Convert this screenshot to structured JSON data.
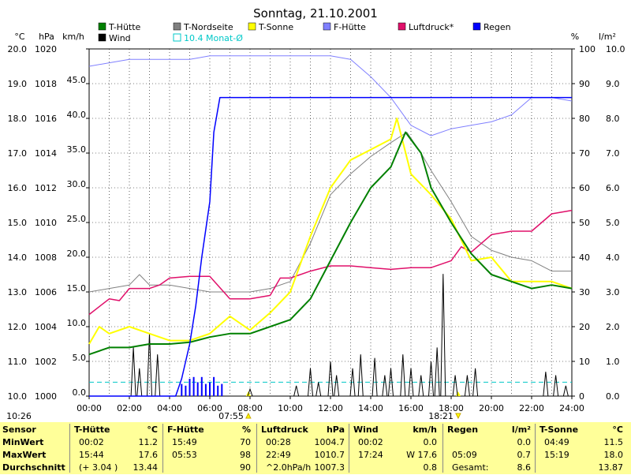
{
  "chart_data": {
    "type": "line",
    "title": "Sonntag, 21.10.2001",
    "x_range": [
      "00:00",
      "24:00"
    ],
    "x_ticks": [
      "00:00",
      "02:00",
      "04:00",
      "06:00",
      "08:00",
      "10:00",
      "12:00",
      "14:00",
      "16:00",
      "18:00",
      "20:00",
      "22:00",
      "24:00"
    ],
    "axes": {
      "celsius": {
        "unit": "°C",
        "range": [
          10.0,
          20.0
        ],
        "ticks": [
          "20.0",
          "19.0",
          "18.0",
          "17.0",
          "16.0",
          "15.0",
          "14.0",
          "13.0",
          "12.0",
          "11.0",
          "10.0"
        ]
      },
      "hpa": {
        "unit": "hPa",
        "range": [
          1000,
          1020
        ],
        "ticks": [
          "1020",
          "1018",
          "1016",
          "1014",
          "1012",
          "1010",
          "1008",
          "1006",
          "1004",
          "1002",
          "1000"
        ]
      },
      "kmh": {
        "unit": "km/h",
        "range": [
          0,
          50
        ],
        "ticks": [
          "45.0",
          "40.0",
          "35.0",
          "30.0",
          "25.0",
          "20.0",
          "15.0",
          "10.0",
          "5.0",
          "0.0"
        ]
      },
      "percent": {
        "unit": "%",
        "range": [
          0,
          100
        ],
        "ticks": [
          "100",
          "90",
          "80",
          "70",
          "60",
          "50",
          "40",
          "30",
          "20",
          "10",
          "0"
        ]
      },
      "rain": {
        "unit": "l/m²",
        "range": [
          0,
          10
        ],
        "ticks": [
          "10.0",
          "9.0",
          "8.0",
          "7.0",
          "6.0",
          "5.0",
          "4.0",
          "3.0",
          "2.0",
          "1.0",
          "0.0"
        ]
      }
    },
    "legend": [
      {
        "name": "T-Hütte",
        "color": "#008000"
      },
      {
        "name": "T-Nordseite",
        "color": "#808080"
      },
      {
        "name": "T-Sonne",
        "color": "#ffff00"
      },
      {
        "name": "F-Hütte",
        "color": "#8080ff"
      },
      {
        "name": "Luftdruck*",
        "color": "#e0106a"
      },
      {
        "name": "Regen",
        "color": "#0000ff"
      },
      {
        "name": "Wind",
        "color": "#000000"
      }
    ],
    "monthly_avg_label": "10.4 Monat-Ø",
    "monthly_avg_color": "#00c8c8",
    "monthly_avg_celsius": 10.4,
    "time_markers": {
      "start": "10:26",
      "sunrise": "07:55",
      "sunset": "18:21"
    },
    "series": [
      {
        "name": "T-Hütte",
        "axis": "celsius",
        "x": [
          0,
          1,
          2,
          3,
          4,
          5,
          6,
          7,
          8,
          9,
          10,
          11,
          12,
          13,
          14,
          15,
          15.73,
          16.5,
          17,
          18,
          19,
          20,
          21,
          22,
          23,
          24
        ],
        "values": [
          11.2,
          11.4,
          11.4,
          11.5,
          11.5,
          11.55,
          11.7,
          11.8,
          11.8,
          12.0,
          12.2,
          12.8,
          13.9,
          15.0,
          16.0,
          16.6,
          17.6,
          17.0,
          16.0,
          15.0,
          14.1,
          13.5,
          13.3,
          13.1,
          13.2,
          13.1
        ]
      },
      {
        "name": "T-Nordseite",
        "axis": "celsius",
        "x": [
          0,
          1,
          2,
          2.5,
          3,
          4,
          5,
          6,
          7,
          8,
          9,
          10,
          11,
          12,
          13,
          14,
          15,
          15.8,
          16.5,
          17,
          18,
          19,
          20,
          21,
          22,
          23,
          24
        ],
        "values": [
          13.0,
          13.1,
          13.2,
          13.5,
          13.2,
          13.2,
          13.1,
          13.0,
          13.0,
          13.0,
          13.1,
          13.3,
          14.4,
          15.8,
          16.4,
          16.9,
          17.3,
          17.6,
          17.0,
          16.5,
          15.6,
          14.6,
          14.2,
          14.0,
          13.9,
          13.6,
          13.6
        ]
      },
      {
        "name": "T-Sonne",
        "axis": "celsius",
        "x": [
          0,
          0.5,
          1,
          2,
          3,
          4,
          5,
          6,
          7,
          8,
          9,
          10,
          11,
          12,
          13,
          14,
          15,
          15.3,
          16,
          17,
          18,
          19,
          20,
          21,
          22,
          23,
          24
        ],
        "values": [
          11.5,
          12.0,
          11.8,
          12.0,
          11.8,
          11.6,
          11.6,
          11.8,
          12.3,
          11.9,
          12.4,
          13.0,
          14.6,
          16.0,
          16.8,
          17.1,
          17.4,
          18.0,
          16.4,
          15.8,
          15.1,
          13.9,
          14.0,
          13.3,
          13.3,
          13.3,
          13.1
        ]
      },
      {
        "name": "F-Hütte",
        "axis": "percent",
        "x": [
          0,
          1,
          2,
          3,
          4,
          5,
          6,
          7,
          8,
          9,
          10,
          11,
          12,
          13,
          14,
          15,
          16,
          17,
          18,
          19,
          20,
          21,
          22,
          23,
          24
        ],
        "values": [
          95,
          96,
          97,
          97,
          97,
          97,
          98,
          98,
          98,
          98,
          98,
          98,
          98,
          97,
          92,
          86,
          78,
          75,
          77,
          78,
          79,
          81,
          86,
          86,
          85
        ]
      },
      {
        "name": "Luftdruck*",
        "axis": "hpa",
        "x": [
          0,
          1,
          1.5,
          2,
          3,
          3.5,
          4,
          5,
          6,
          7,
          8,
          9,
          9.5,
          10,
          11,
          12,
          13,
          14,
          15,
          16,
          17,
          18,
          18.5,
          19,
          20,
          21,
          22,
          23,
          24
        ],
        "values": [
          1004.7,
          1005.6,
          1005.5,
          1006.2,
          1006.2,
          1006.4,
          1006.8,
          1006.9,
          1006.9,
          1005.6,
          1005.6,
          1005.8,
          1006.8,
          1006.8,
          1007.2,
          1007.5,
          1007.5,
          1007.4,
          1007.3,
          1007.4,
          1007.4,
          1007.8,
          1008.6,
          1008.3,
          1009.3,
          1009.5,
          1009.5,
          1010.5,
          1010.7
        ]
      },
      {
        "name": "Regen",
        "axis": "rain",
        "x": [
          0,
          4.3,
          4.6,
          5.0,
          5.3,
          5.6,
          6.0,
          6.2,
          6.5,
          7,
          7.3,
          8,
          24
        ],
        "values": [
          0,
          0,
          0.5,
          1.5,
          2.6,
          4.0,
          5.6,
          7.6,
          8.6,
          8.6,
          8.6,
          8.6,
          8.6
        ]
      },
      {
        "name": "Wind",
        "axis": "kmh",
        "x": [
          2.2,
          2.5,
          3.0,
          3.4,
          8.0,
          10.3,
          11.0,
          11.4,
          12.0,
          12.3,
          13.1,
          13.5,
          14.2,
          14.7,
          15.0,
          15.6,
          16.0,
          16.5,
          17.0,
          17.3,
          17.6,
          18.2,
          18.8,
          19.2,
          22.7,
          23.2,
          23.7
        ],
        "values": [
          7.0,
          4.0,
          9.0,
          6.0,
          1.0,
          1.5,
          4.0,
          2.0,
          5.0,
          3.0,
          4.0,
          6.0,
          5.5,
          3.0,
          4.0,
          6.0,
          4.0,
          3.0,
          5.0,
          7.0,
          17.6,
          3.0,
          3.0,
          4.0,
          3.5,
          3.0,
          1.5
        ]
      }
    ]
  },
  "stats": {
    "headers": {
      "sensor": "Sensor",
      "huette": [
        "T-Hütte",
        "°C"
      ],
      "fhuette": [
        "F-Hütte",
        "%"
      ],
      "luft": [
        "Luftdruck",
        "hPa"
      ],
      "wind": [
        "Wind",
        "km/h"
      ],
      "regen": [
        "Regen",
        "l/m²"
      ],
      "sonne": [
        "T-Sonne",
        "°C"
      ]
    },
    "rows": [
      "MinWert",
      "MaxWert",
      "Durchschnitt"
    ],
    "huette": [
      [
        "00:02",
        "11.2"
      ],
      [
        "15:44",
        "17.6"
      ],
      [
        "(+ 3.04 )",
        "13.44"
      ]
    ],
    "fhuette": [
      [
        "15:49",
        "70"
      ],
      [
        "05:53",
        "98"
      ],
      [
        "",
        "90"
      ]
    ],
    "luft": [
      [
        "00:28",
        "1004.7"
      ],
      [
        "22:49",
        "1010.7"
      ],
      [
        "^2.0hPa/h",
        "1007.3"
      ]
    ],
    "wind": [
      [
        "00:02",
        "0.0"
      ],
      [
        "17:24",
        "W 17.6"
      ],
      [
        "",
        "0.8"
      ]
    ],
    "regen": [
      [
        "",
        "0.0"
      ],
      [
        "05:09",
        "0.7"
      ],
      [
        "Gesamt:",
        "8.6"
      ]
    ],
    "sonne": [
      [
        "04:49",
        "11.5"
      ],
      [
        "15:19",
        "18.0"
      ],
      [
        "",
        "13.87"
      ]
    ]
  }
}
